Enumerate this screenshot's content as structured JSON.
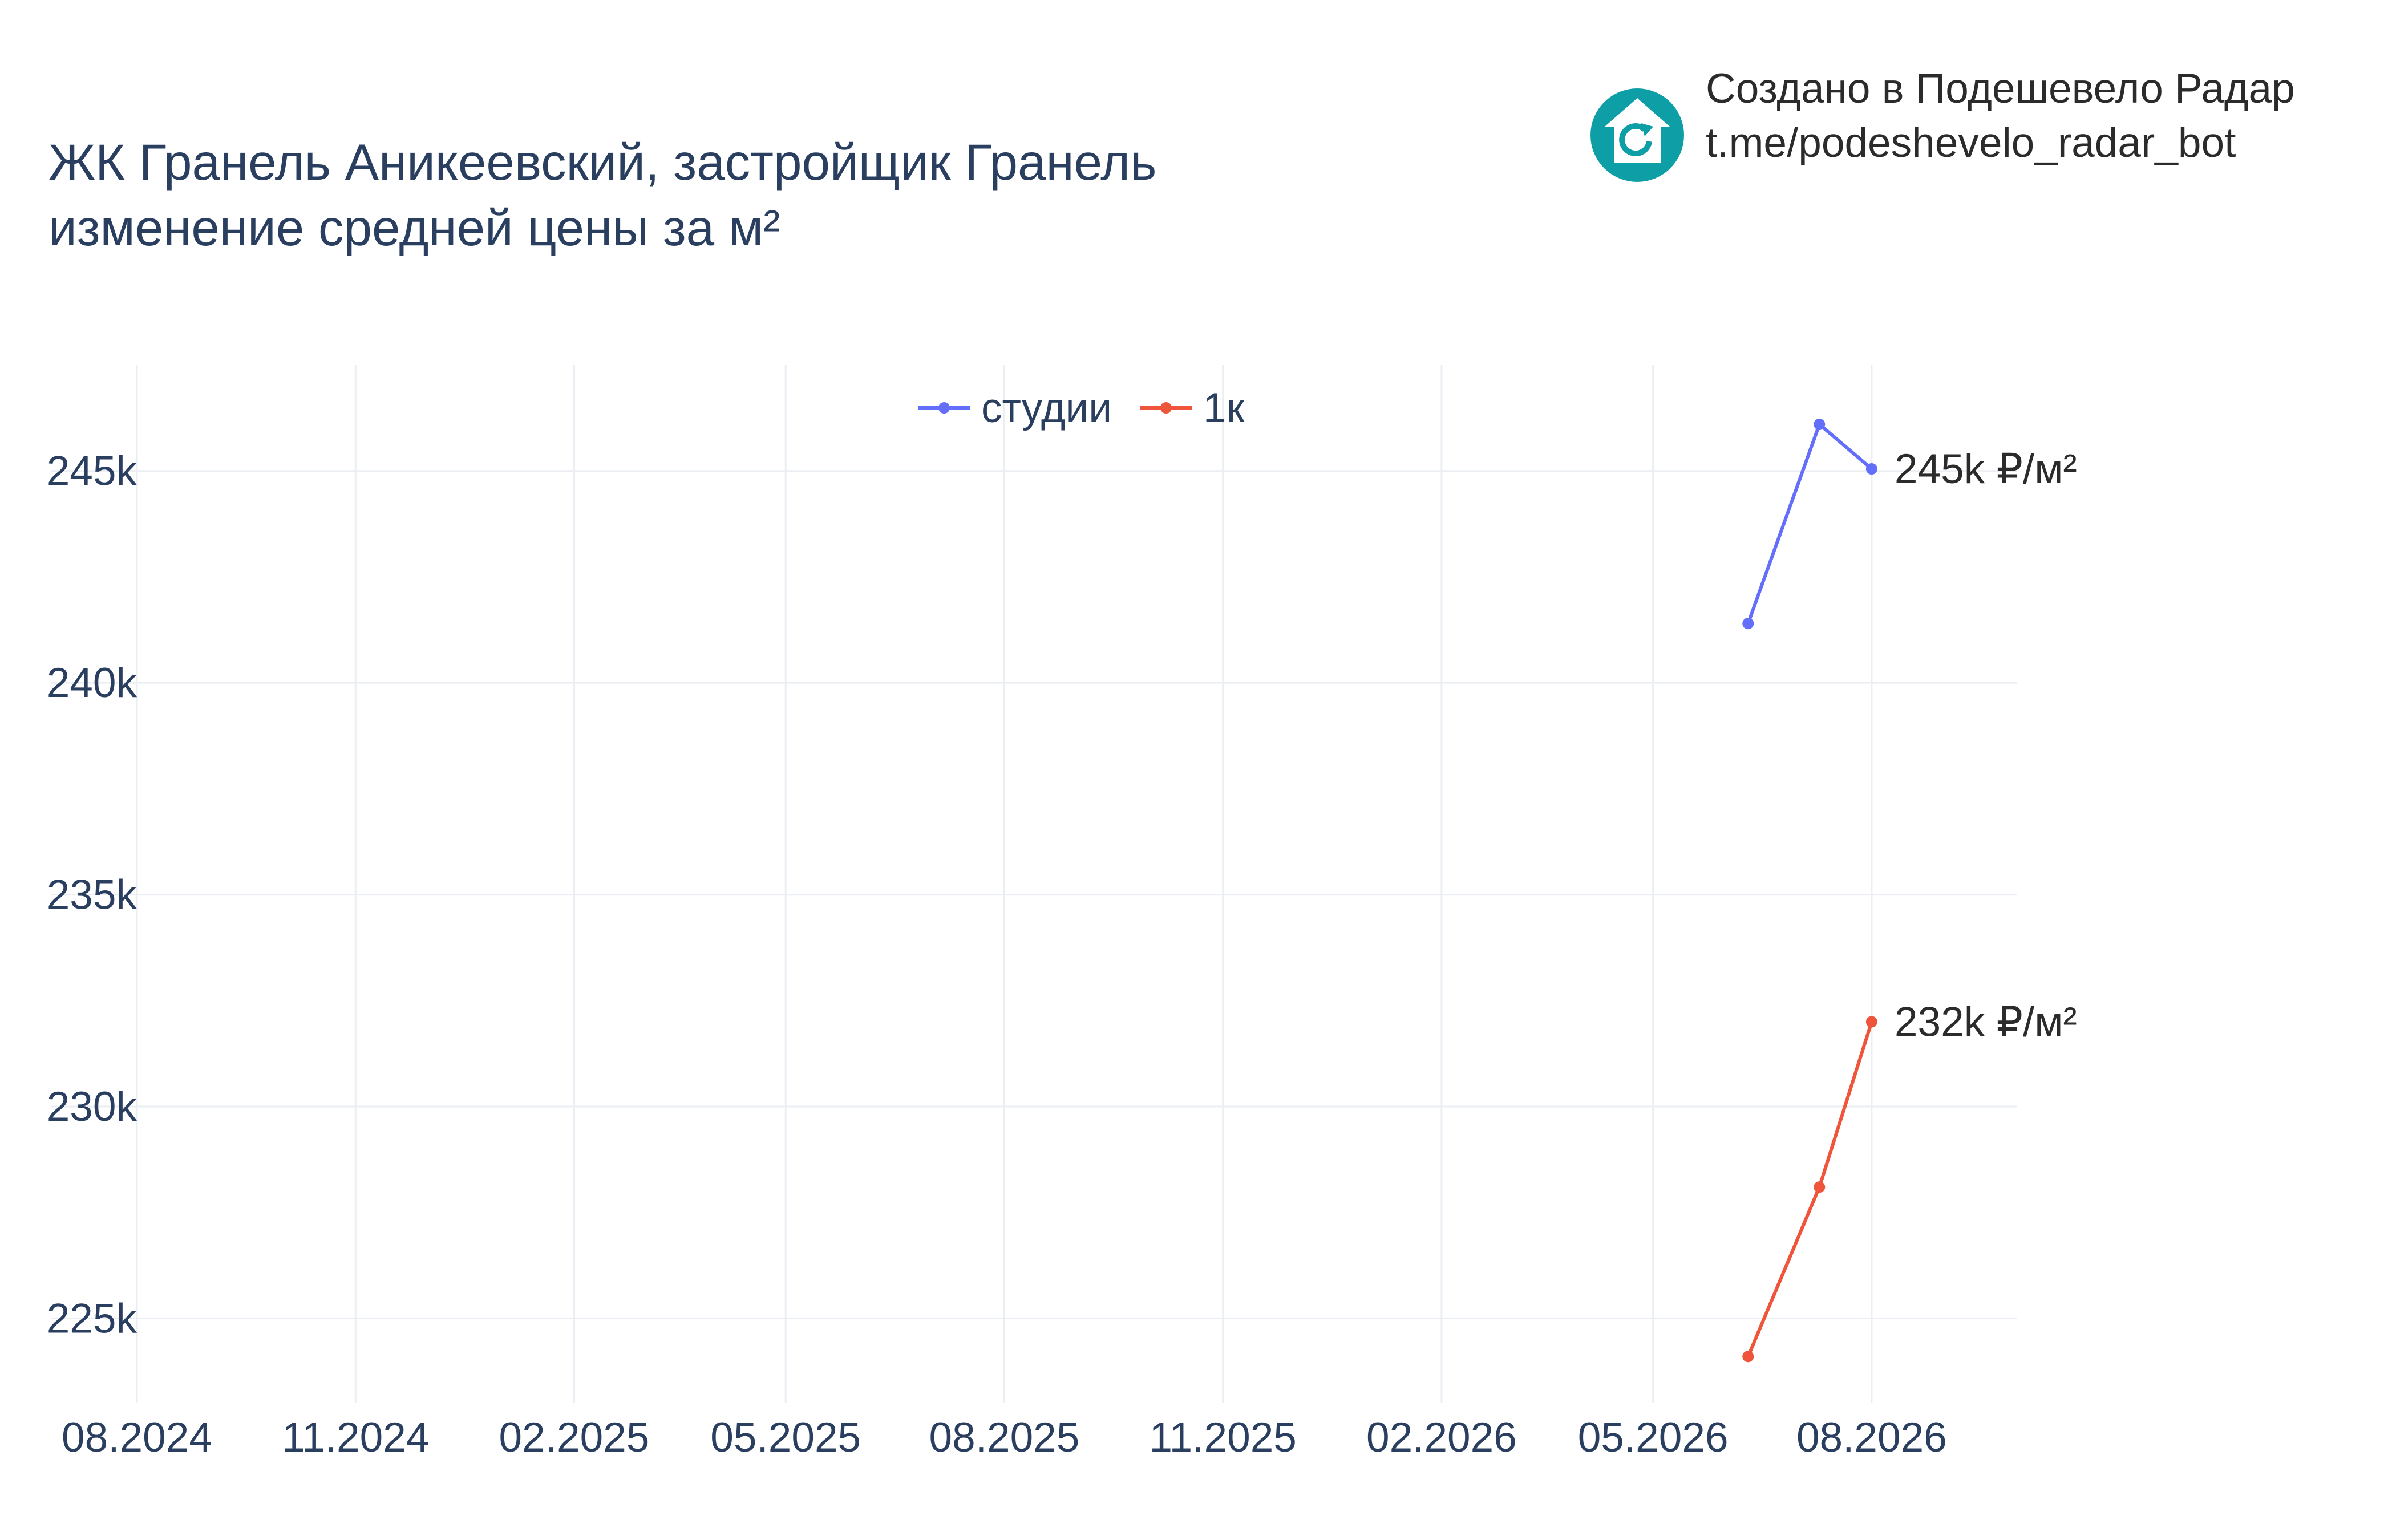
{
  "branding": {
    "line1": "Создано в Подешевело Радар",
    "line2": "t.me/podeshevelo_radar_bot",
    "logo_icon": "house-refresh-icon",
    "logo_color": "#0e9ea6"
  },
  "chart_data": {
    "type": "line",
    "title_lines": [
      "ЖК Гранель Аникеевский, застройщик Гранель",
      "изменение средней цены за м²"
    ],
    "xlabel": "",
    "ylabel": "",
    "x_ticks": [
      "08.2024",
      "11.2024",
      "02.2025",
      "05.2025",
      "08.2025",
      "11.2025",
      "02.2026",
      "05.2026",
      "08.2026"
    ],
    "x_tick_dates": [
      "2024-08-01",
      "2024-11-01",
      "2025-02-01",
      "2025-05-01",
      "2025-08-01",
      "2025-11-01",
      "2026-02-01",
      "2026-05-01",
      "2026-08-01"
    ],
    "xlim": [
      "2024-08-01",
      "2026-10-01"
    ],
    "y_ticks": [
      225000,
      230000,
      235000,
      240000,
      245000
    ],
    "y_tick_labels": [
      "225k",
      "230k",
      "235k",
      "240k",
      "245k"
    ],
    "ylim": [
      223000,
      247500
    ],
    "grid": true,
    "legend_position": "top-center",
    "series": [
      {
        "name": "студии",
        "color": "#636efa",
        "x": [
          "2026-06-10",
          "2026-07-10",
          "2026-08-01"
        ],
        "y": [
          241400,
          246100,
          245050
        ],
        "end_label": "245k ₽/м²"
      },
      {
        "name": "1к",
        "color": "#ef553b",
        "x": [
          "2026-06-10",
          "2026-07-10",
          "2026-08-01"
        ],
        "y": [
          224100,
          228100,
          232000
        ],
        "end_label": "232k ₽/м²"
      }
    ]
  }
}
